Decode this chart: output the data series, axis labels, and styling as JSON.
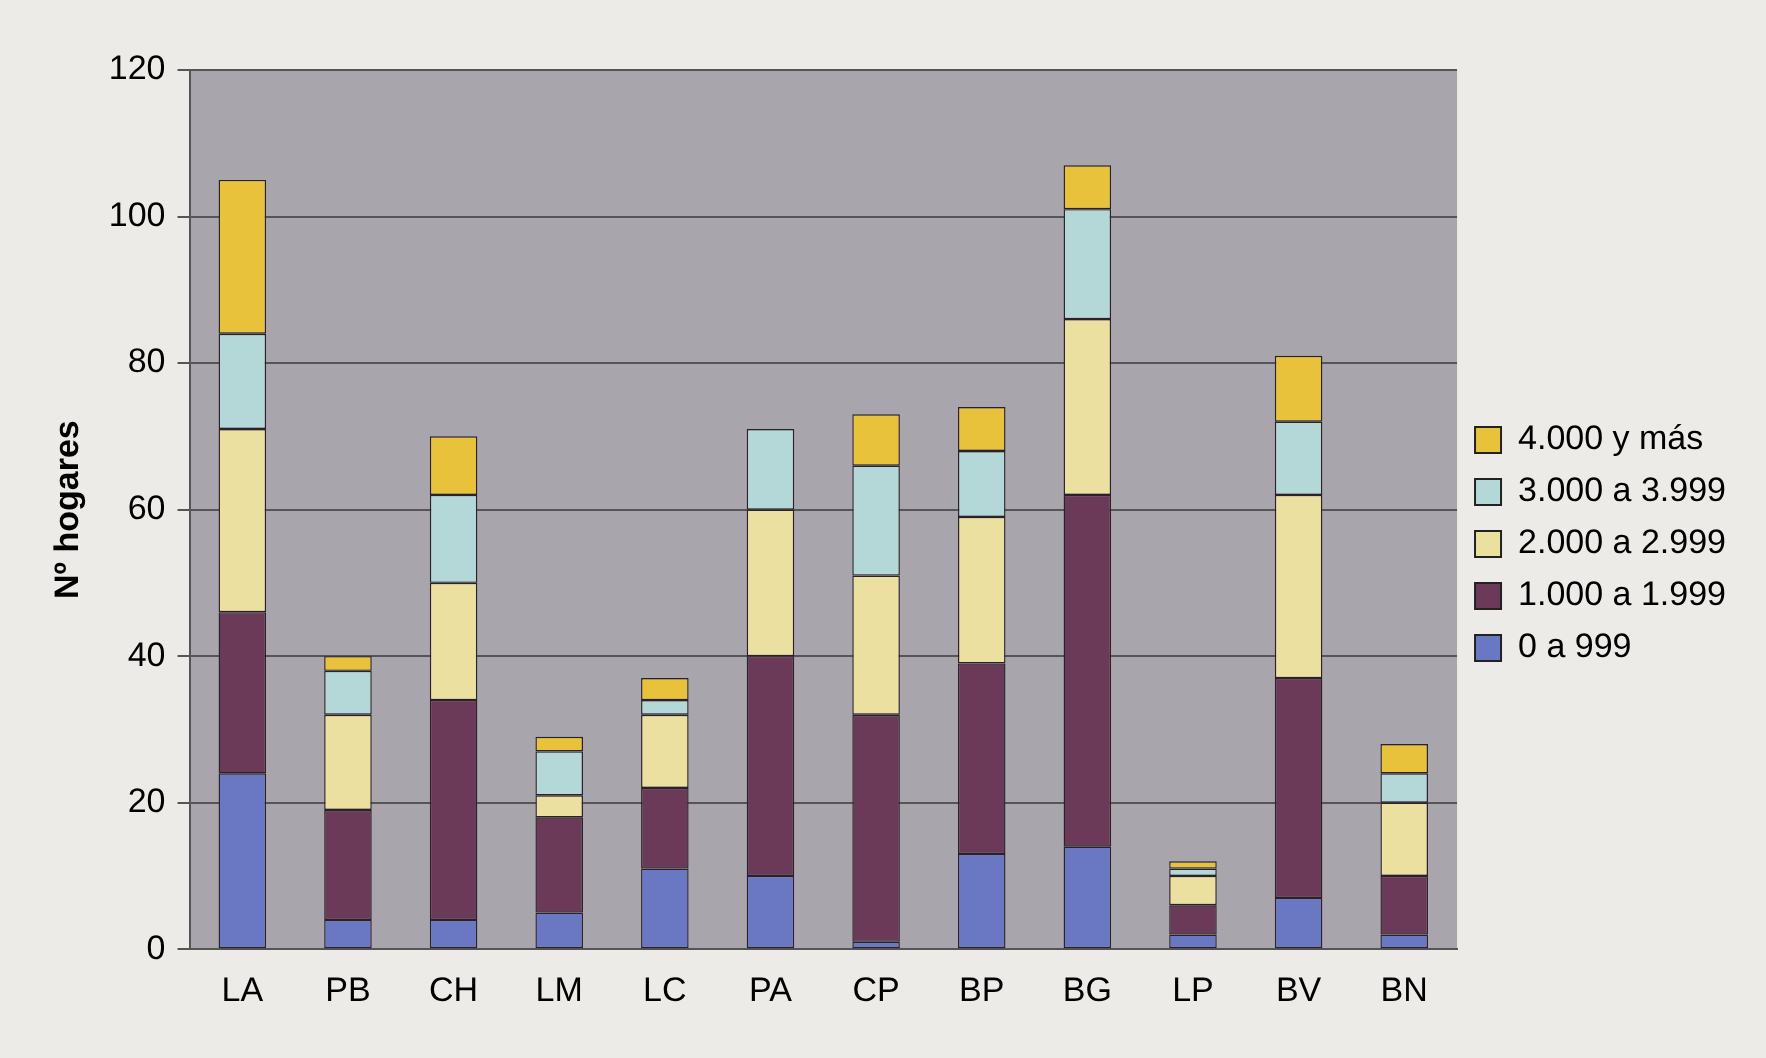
{
  "chart_data": {
    "type": "bar",
    "stacked": true,
    "ylabel": "Nº hogares",
    "categories": [
      "LA",
      "PB",
      "CH",
      "LM",
      "LC",
      "PA",
      "CP",
      "BP",
      "BG",
      "LP",
      "BV",
      "BN"
    ],
    "series": [
      {
        "name": "0 a 999",
        "color": "#6a78c4",
        "values": [
          24,
          4,
          4,
          5,
          11,
          10,
          1,
          13,
          14,
          2,
          7,
          2
        ]
      },
      {
        "name": "1.000 a 1.999",
        "color": "#6a3a58",
        "values": [
          22,
          15,
          30,
          13,
          11,
          30,
          31,
          26,
          48,
          4,
          30,
          8
        ]
      },
      {
        "name": "2.000 a 2.999",
        "color": "#ece0a0",
        "values": [
          25,
          13,
          16,
          3,
          10,
          20,
          19,
          20,
          24,
          4,
          25,
          10
        ]
      },
      {
        "name": "3.000 a 3.999",
        "color": "#b4d8d8",
        "values": [
          13,
          6,
          12,
          6,
          2,
          11,
          15,
          9,
          15,
          1,
          10,
          4
        ]
      },
      {
        "name": "4.000 y más",
        "color": "#e8c23a",
        "values": [
          21,
          2,
          8,
          2,
          3,
          0,
          7,
          6,
          6,
          1,
          9,
          4
        ]
      }
    ],
    "ylim": [
      0,
      120
    ],
    "yticks": [
      0,
      20,
      40,
      60,
      80,
      100,
      120
    ],
    "grid": "y",
    "legend": "right"
  }
}
